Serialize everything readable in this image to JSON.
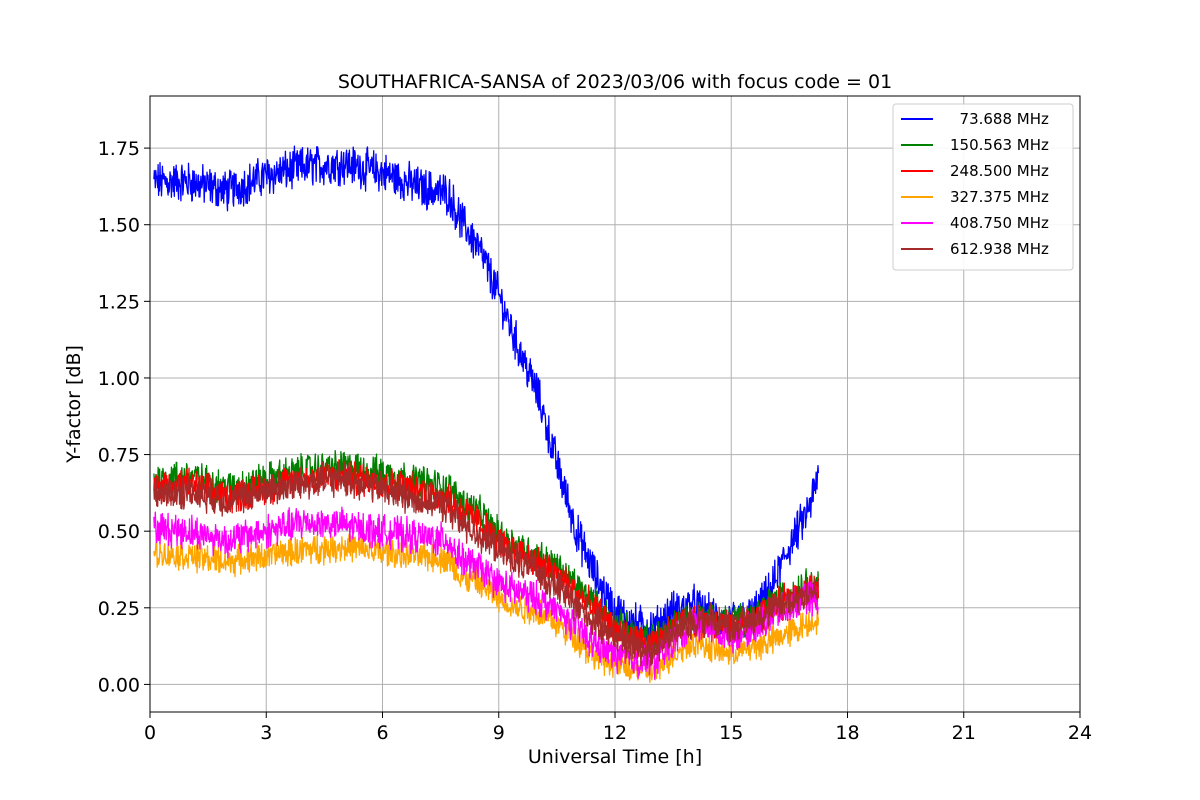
{
  "chart_data": {
    "type": "line",
    "title": "SOUTHAFRICA-SANSA of 2023/03/06 with focus code = 01",
    "xlabel": "Universal Time [h]",
    "ylabel": "Y-factor [dB]",
    "xlim": [
      0,
      24
    ],
    "ylim": [
      -0.09,
      1.92
    ],
    "xticks": [
      0,
      3,
      6,
      9,
      12,
      15,
      18,
      21,
      24
    ],
    "yticks": [
      0.0,
      0.25,
      0.5,
      0.75,
      1.0,
      1.25,
      1.5,
      1.75
    ],
    "xtick_labels": [
      "0",
      "3",
      "6",
      "9",
      "12",
      "15",
      "18",
      "21",
      "24"
    ],
    "ytick_labels": [
      "0.00",
      "0.25",
      "0.50",
      "0.75",
      "1.00",
      "1.25",
      "1.50",
      "1.75"
    ],
    "grid": true,
    "legend_position": "top-right",
    "x_end": 17.25,
    "series": [
      {
        "name": "  73.688 MHz",
        "color": "#0000ff",
        "noise": 0.055,
        "points": [
          [
            0.1,
            1.64
          ],
          [
            1,
            1.64
          ],
          [
            2,
            1.61
          ],
          [
            3,
            1.66
          ],
          [
            4,
            1.69
          ],
          [
            5,
            1.7
          ],
          [
            6,
            1.67
          ],
          [
            7,
            1.62
          ],
          [
            7.7,
            1.6
          ],
          [
            8,
            1.52
          ],
          [
            8.5,
            1.42
          ],
          [
            9,
            1.27
          ],
          [
            9.5,
            1.1
          ],
          [
            10,
            0.95
          ],
          [
            10.5,
            0.72
          ],
          [
            11,
            0.5
          ],
          [
            11.5,
            0.35
          ],
          [
            12,
            0.24
          ],
          [
            12.5,
            0.2
          ],
          [
            13,
            0.18
          ],
          [
            13.5,
            0.24
          ],
          [
            14,
            0.26
          ],
          [
            14.5,
            0.22
          ],
          [
            15,
            0.2
          ],
          [
            15.5,
            0.22
          ],
          [
            16,
            0.3
          ],
          [
            16.5,
            0.45
          ],
          [
            17,
            0.57
          ],
          [
            17.25,
            0.68
          ]
        ]
      },
      {
        "name": "150.563 MHz",
        "color": "#008000",
        "noise": 0.045,
        "points": [
          [
            0.1,
            0.67
          ],
          [
            1,
            0.68
          ],
          [
            2,
            0.64
          ],
          [
            3,
            0.67
          ],
          [
            4,
            0.7
          ],
          [
            5,
            0.71
          ],
          [
            6,
            0.69
          ],
          [
            7,
            0.66
          ],
          [
            7.7,
            0.64
          ],
          [
            8,
            0.6
          ],
          [
            8.5,
            0.56
          ],
          [
            9,
            0.49
          ],
          [
            9.5,
            0.45
          ],
          [
            10,
            0.42
          ],
          [
            10.5,
            0.38
          ],
          [
            11,
            0.32
          ],
          [
            11.5,
            0.26
          ],
          [
            12,
            0.2
          ],
          [
            12.5,
            0.16
          ],
          [
            13,
            0.14
          ],
          [
            13.5,
            0.2
          ],
          [
            14,
            0.22
          ],
          [
            14.5,
            0.22
          ],
          [
            15,
            0.2
          ],
          [
            15.5,
            0.22
          ],
          [
            16,
            0.26
          ],
          [
            16.5,
            0.3
          ],
          [
            17,
            0.33
          ],
          [
            17.25,
            0.32
          ]
        ]
      },
      {
        "name": "248.500 MHz",
        "color": "#ff0000",
        "noise": 0.045,
        "points": [
          [
            0.1,
            0.64
          ],
          [
            1,
            0.65
          ],
          [
            2,
            0.61
          ],
          [
            3,
            0.64
          ],
          [
            4,
            0.67
          ],
          [
            5,
            0.68
          ],
          [
            6,
            0.66
          ],
          [
            7,
            0.63
          ],
          [
            7.7,
            0.61
          ],
          [
            8,
            0.57
          ],
          [
            8.5,
            0.53
          ],
          [
            9,
            0.46
          ],
          [
            9.5,
            0.43
          ],
          [
            10,
            0.4
          ],
          [
            10.5,
            0.36
          ],
          [
            11,
            0.3
          ],
          [
            11.5,
            0.24
          ],
          [
            12,
            0.18
          ],
          [
            12.5,
            0.14
          ],
          [
            13,
            0.12
          ],
          [
            13.5,
            0.18
          ],
          [
            14,
            0.2
          ],
          [
            14.5,
            0.2
          ],
          [
            15,
            0.18
          ],
          [
            15.5,
            0.2
          ],
          [
            16,
            0.24
          ],
          [
            16.5,
            0.28
          ],
          [
            17,
            0.31
          ],
          [
            17.25,
            0.3
          ]
        ]
      },
      {
        "name": "327.375 MHz",
        "color": "#ffa500",
        "noise": 0.04,
        "points": [
          [
            0.1,
            0.43
          ],
          [
            1,
            0.42
          ],
          [
            2,
            0.4
          ],
          [
            3,
            0.42
          ],
          [
            4,
            0.44
          ],
          [
            5,
            0.45
          ],
          [
            6,
            0.43
          ],
          [
            7,
            0.42
          ],
          [
            7.7,
            0.41
          ],
          [
            8,
            0.35
          ],
          [
            8.5,
            0.33
          ],
          [
            9,
            0.28
          ],
          [
            9.5,
            0.25
          ],
          [
            10,
            0.24
          ],
          [
            10.5,
            0.2
          ],
          [
            11,
            0.15
          ],
          [
            11.5,
            0.09
          ],
          [
            12,
            0.07
          ],
          [
            12.5,
            0.05
          ],
          [
            13,
            0.04
          ],
          [
            13.5,
            0.1
          ],
          [
            14,
            0.14
          ],
          [
            14.5,
            0.12
          ],
          [
            15,
            0.1
          ],
          [
            15.5,
            0.12
          ],
          [
            16,
            0.14
          ],
          [
            16.5,
            0.17
          ],
          [
            17,
            0.2
          ],
          [
            17.25,
            0.22
          ]
        ]
      },
      {
        "name": "408.750 MHz",
        "color": "#ff00ff",
        "noise": 0.045,
        "points": [
          [
            0.1,
            0.51
          ],
          [
            1,
            0.5
          ],
          [
            2,
            0.47
          ],
          [
            3,
            0.5
          ],
          [
            4,
            0.53
          ],
          [
            5,
            0.52
          ],
          [
            6,
            0.5
          ],
          [
            7,
            0.48
          ],
          [
            7.7,
            0.47
          ],
          [
            8,
            0.41
          ],
          [
            8.5,
            0.38
          ],
          [
            9,
            0.33
          ],
          [
            9.5,
            0.3
          ],
          [
            10,
            0.28
          ],
          [
            10.5,
            0.24
          ],
          [
            11,
            0.19
          ],
          [
            11.5,
            0.13
          ],
          [
            12,
            0.1
          ],
          [
            12.5,
            0.08
          ],
          [
            13,
            0.07
          ],
          [
            13.5,
            0.14
          ],
          [
            14,
            0.2
          ],
          [
            14.5,
            0.18
          ],
          [
            15,
            0.16
          ],
          [
            15.5,
            0.18
          ],
          [
            16,
            0.22
          ],
          [
            16.5,
            0.25
          ],
          [
            17,
            0.28
          ],
          [
            17.25,
            0.28
          ]
        ]
      },
      {
        "name": "612.938 MHz",
        "color": "#a52a2a",
        "noise": 0.045,
        "points": [
          [
            0.1,
            0.62
          ],
          [
            1,
            0.63
          ],
          [
            2,
            0.6
          ],
          [
            3,
            0.63
          ],
          [
            4,
            0.66
          ],
          [
            5,
            0.67
          ],
          [
            6,
            0.64
          ],
          [
            7,
            0.6
          ],
          [
            7.7,
            0.58
          ],
          [
            8,
            0.53
          ],
          [
            8.5,
            0.49
          ],
          [
            9,
            0.44
          ],
          [
            9.5,
            0.4
          ],
          [
            10,
            0.37
          ],
          [
            10.5,
            0.32
          ],
          [
            11,
            0.26
          ],
          [
            11.5,
            0.2
          ],
          [
            12,
            0.16
          ],
          [
            12.5,
            0.13
          ],
          [
            13,
            0.11
          ],
          [
            13.5,
            0.17
          ],
          [
            14,
            0.21
          ],
          [
            14.5,
            0.21
          ],
          [
            15,
            0.19
          ],
          [
            15.5,
            0.21
          ],
          [
            16,
            0.24
          ],
          [
            16.5,
            0.27
          ],
          [
            17,
            0.3
          ],
          [
            17.25,
            0.3
          ]
        ]
      }
    ]
  }
}
